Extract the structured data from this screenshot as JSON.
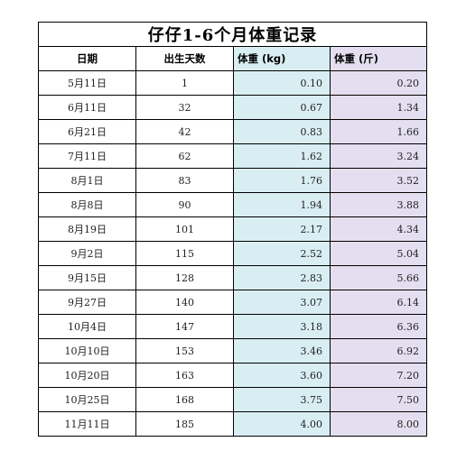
{
  "title": "仔仔1-6个月体重记录",
  "headers": {
    "date": "日期",
    "days": "出生天数",
    "kg": "体重 (kg)",
    "jin": "体重 (斤)"
  },
  "rows": [
    {
      "date": "5月11日",
      "days": "1",
      "kg": "0.10",
      "jin": "0.20"
    },
    {
      "date": "6月11日",
      "days": "32",
      "kg": "0.67",
      "jin": "1.34"
    },
    {
      "date": "6月21日",
      "days": "42",
      "kg": "0.83",
      "jin": "1.66"
    },
    {
      "date": "7月11日",
      "days": "62",
      "kg": "1.62",
      "jin": "3.24"
    },
    {
      "date": "8月1日",
      "days": "83",
      "kg": "1.76",
      "jin": "3.52"
    },
    {
      "date": "8月8日",
      "days": "90",
      "kg": "1.94",
      "jin": "3.88"
    },
    {
      "date": "8月19日",
      "days": "101",
      "kg": "2.17",
      "jin": "4.34"
    },
    {
      "date": "9月2日",
      "days": "115",
      "kg": "2.52",
      "jin": "5.04"
    },
    {
      "date": "9月15日",
      "days": "128",
      "kg": "2.83",
      "jin": "5.66"
    },
    {
      "date": "9月27日",
      "days": "140",
      "kg": "3.07",
      "jin": "6.14"
    },
    {
      "date": "10月4日",
      "days": "147",
      "kg": "3.18",
      "jin": "6.36"
    },
    {
      "date": "10月10日",
      "days": "153",
      "kg": "3.46",
      "jin": "6.92"
    },
    {
      "date": "10月20日",
      "days": "163",
      "kg": "3.60",
      "jin": "7.20"
    },
    {
      "date": "10月25日",
      "days": "168",
      "kg": "3.75",
      "jin": "7.50"
    },
    {
      "date": "11月11日",
      "days": "185",
      "kg": "4.00",
      "jin": "8.00"
    }
  ],
  "colors": {
    "kg_column": "#d9eef3",
    "jin_column": "#e4dff0",
    "border": "#000000"
  }
}
